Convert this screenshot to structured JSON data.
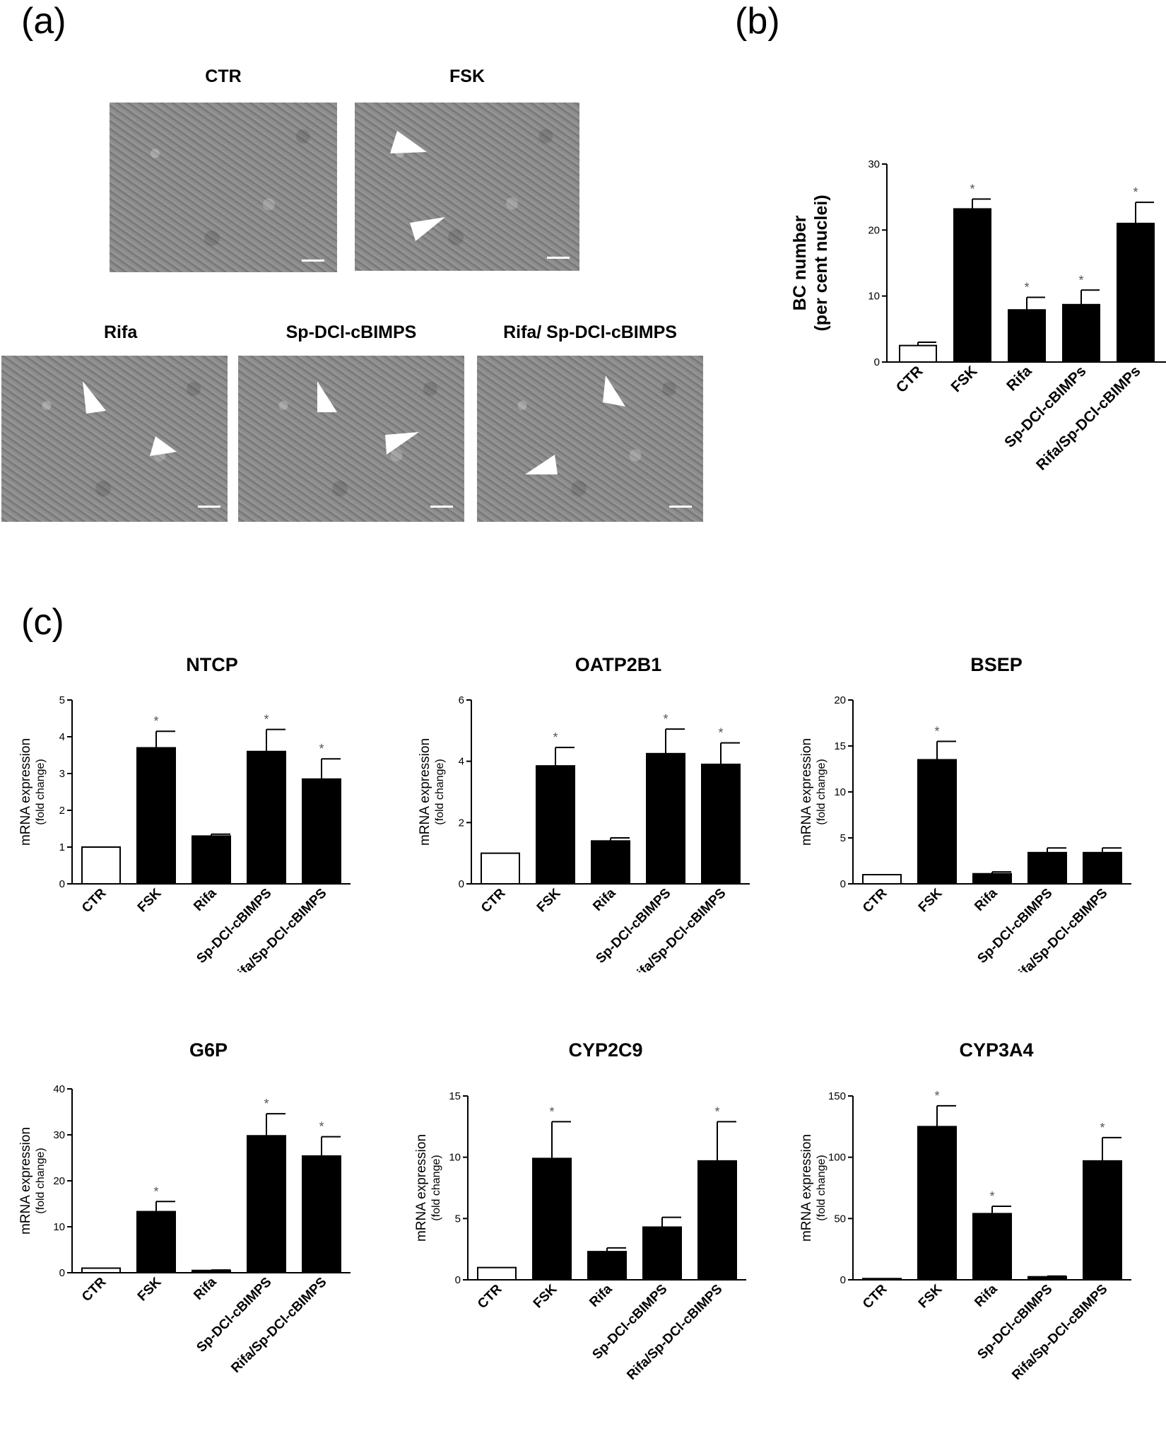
{
  "panels": {
    "a": "(a)",
    "b": "(b)",
    "c": "(c)"
  },
  "micrographs": [
    {
      "title": "CTR",
      "arrows": 0
    },
    {
      "title": "FSK",
      "arrows": 2
    },
    {
      "title": "Rifa",
      "arrows": 2
    },
    {
      "title": "Sp-DCl-cBIMPS",
      "arrows": 2
    },
    {
      "title": "Rifa/  Sp-DCl-cBIMPS",
      "arrows": 2
    }
  ],
  "colors": {
    "control_fill": "#ffffff",
    "treatment_fill": "#000000",
    "asterisk": "#555555"
  },
  "chart_data": [
    {
      "id": "bc",
      "type": "bar",
      "title": "",
      "ylabel": "BC number",
      "ylabel2": "(per cent nuclei)",
      "categories": [
        "CTR",
        "FSK",
        "Rifa",
        "Sp-DCl-cBIMPs",
        "Rifa/Sp-DCl-cBIMPs"
      ],
      "values": [
        2.5,
        23.2,
        7.9,
        8.7,
        21.0
      ],
      "errors": [
        0.5,
        1.5,
        1.9,
        2.2,
        3.2
      ],
      "significant": [
        false,
        true,
        true,
        true,
        true
      ],
      "ylim": [
        0,
        30
      ],
      "yticks": [
        "0",
        "10",
        "20",
        "30"
      ]
    },
    {
      "id": "ntcp",
      "type": "bar",
      "title": "NTCP",
      "ylabel": "mRNA expression",
      "ylabel2": "(fold change)",
      "categories": [
        "CTR",
        "FSK",
        "Rifa",
        "Sp-DCl-cBIMPS",
        "Rifa/Sp-DCl-cBIMPS"
      ],
      "values": [
        1.0,
        3.7,
        1.3,
        3.6,
        2.85
      ],
      "errors": [
        0,
        0.45,
        0.05,
        0.6,
        0.55
      ],
      "significant": [
        false,
        true,
        false,
        true,
        true
      ],
      "ylim": [
        0,
        5
      ],
      "yticks": [
        "0",
        "1",
        "2",
        "3",
        "4",
        "5"
      ]
    },
    {
      "id": "oatp2b1",
      "type": "bar",
      "title": "OATP2B1",
      "ylabel": "mRNA expression",
      "ylabel2": "(fold change)",
      "categories": [
        "CTR",
        "FSK",
        "Rifa",
        "Sp-DCl-cBIMPS",
        "Rifa/Sp-DCl-cBIMPS"
      ],
      "values": [
        1.0,
        3.85,
        1.4,
        4.25,
        3.9
      ],
      "errors": [
        0,
        0.6,
        0.1,
        0.8,
        0.7
      ],
      "significant": [
        false,
        true,
        false,
        true,
        true
      ],
      "ylim": [
        0,
        6
      ],
      "yticks": [
        "0",
        "2",
        "4",
        "6"
      ]
    },
    {
      "id": "bsep",
      "type": "bar",
      "title": "BSEP",
      "ylabel": "mRNA expression",
      "ylabel2": "(fold change)",
      "categories": [
        "CTR",
        "FSK",
        "Rifa",
        "Sp-DCl-cBIMPS",
        "Rifa/Sp-DCl-cBIMPS"
      ],
      "values": [
        1.0,
        13.5,
        1.1,
        3.4,
        3.4
      ],
      "errors": [
        0,
        2.0,
        0.2,
        0.5,
        0.5
      ],
      "significant": [
        false,
        true,
        false,
        false,
        false
      ],
      "ylim": [
        0,
        20
      ],
      "yticks": [
        "0",
        "5",
        "10",
        "15",
        "20"
      ]
    },
    {
      "id": "g6p",
      "type": "bar",
      "title": "G6P",
      "ylabel": "mRNA expression",
      "ylabel2": "(fold change)",
      "categories": [
        "CTR",
        "FSK",
        "Rifa",
        "Sp-DCl-cBIMPS",
        "Rifa/Sp-DCl-cBIMPS"
      ],
      "values": [
        1.0,
        13.3,
        0.5,
        29.8,
        25.4
      ],
      "errors": [
        0,
        2.2,
        0.1,
        4.8,
        4.2
      ],
      "significant": [
        false,
        true,
        false,
        true,
        true
      ],
      "ylim": [
        0,
        40
      ],
      "yticks": [
        "0",
        "10",
        "20",
        "30",
        "40"
      ]
    },
    {
      "id": "cyp2c9",
      "type": "bar",
      "title": "CYP2C9",
      "ylabel": "mRNA expression",
      "ylabel2": "(fold change)",
      "categories": [
        "CTR",
        "FSK",
        "Rifa",
        "Sp-DCl-cBIMPS",
        "Rifa/Sp-DCl-cBIMPS"
      ],
      "values": [
        1.0,
        9.9,
        2.3,
        4.3,
        9.7
      ],
      "errors": [
        0,
        3.0,
        0.3,
        0.8,
        3.2
      ],
      "significant": [
        false,
        true,
        false,
        false,
        true
      ],
      "ylim": [
        0,
        15
      ],
      "yticks": [
        "0",
        "5",
        "10",
        "15"
      ]
    },
    {
      "id": "cyp3a4",
      "type": "bar",
      "title": "CYP3A4",
      "ylabel": "mRNA expression",
      "ylabel2": "(fold change)",
      "categories": [
        "CTR",
        "FSK",
        "Rifa",
        "Sp-DCl-cBIMPS",
        "Rifa/Sp-DCl-cBIMPS"
      ],
      "values": [
        1.0,
        125,
        54,
        2.5,
        97
      ],
      "errors": [
        0,
        17,
        6,
        0.5,
        19
      ],
      "significant": [
        false,
        true,
        true,
        false,
        true
      ],
      "ylim": [
        0,
        150
      ],
      "yticks": [
        "0",
        "50",
        "100",
        "150"
      ]
    }
  ]
}
